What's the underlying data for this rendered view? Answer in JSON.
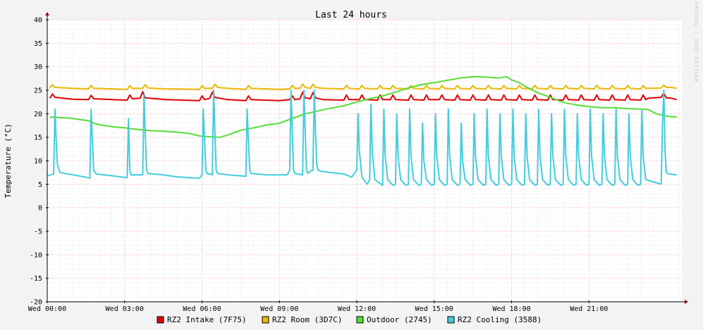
{
  "chart_data": {
    "type": "line",
    "title": "Last 24 hours",
    "ylabel": "Temperature (°C)",
    "xlabel": "",
    "watermark": "RRDTOOL / TOBI OETIKER",
    "ylim": [
      -20,
      40
    ],
    "yticks": [
      40,
      35,
      30,
      25,
      20,
      15,
      10,
      5,
      0,
      -5,
      -10,
      -15,
      -20
    ],
    "xlim_hours": [
      0,
      24.6
    ],
    "xticks": [
      {
        "hour": 0,
        "label": "Wed 00:00"
      },
      {
        "hour": 3,
        "label": "Wed 03:00"
      },
      {
        "hour": 6,
        "label": "Wed 06:00"
      },
      {
        "hour": 9,
        "label": "Wed 09:00"
      },
      {
        "hour": 12,
        "label": "Wed 12:00"
      },
      {
        "hour": 15,
        "label": "Wed 15:00"
      },
      {
        "hour": 18,
        "label": "Wed 18:00"
      },
      {
        "hour": 21,
        "label": "Wed 21:00"
      }
    ],
    "grid": true,
    "legend_position": "bottom",
    "series": [
      {
        "name": "RZ2 Intake (7F75)",
        "color": "#e00000",
        "x": [
          0.1,
          0.2,
          0.3,
          1.0,
          1.6,
          1.7,
          1.8,
          2.5,
          3.1,
          3.2,
          3.3,
          3.6,
          3.7,
          3.8,
          4.6,
          5.9,
          6.0,
          6.1,
          6.3,
          6.4,
          6.5,
          7.0,
          7.7,
          7.8,
          7.9,
          9.0,
          9.4,
          9.5,
          9.6,
          9.8,
          9.9,
          10.0,
          10.2,
          10.3,
          10.4,
          10.7,
          11.5,
          11.6,
          11.7,
          12.1,
          12.2,
          12.3,
          12.8,
          12.9,
          13.0,
          13.3,
          13.4,
          13.5,
          14.0,
          14.1,
          14.2,
          14.6,
          14.7,
          14.8,
          15.2,
          15.3,
          15.4,
          15.8,
          15.9,
          16.0,
          16.4,
          16.5,
          16.6,
          17.0,
          17.1,
          17.2,
          17.6,
          17.7,
          17.8,
          18.2,
          18.3,
          18.4,
          18.8,
          18.9,
          19.0,
          19.4,
          19.5,
          19.6,
          20.0,
          20.1,
          20.2,
          20.6,
          20.7,
          20.8,
          21.2,
          21.3,
          21.4,
          21.8,
          21.9,
          22.0,
          22.4,
          22.5,
          22.6,
          23.0,
          23.1,
          23.2,
          23.3,
          23.8,
          23.9,
          24.0,
          24.2,
          24.4
        ],
        "values": [
          23.3,
          24.2,
          23.5,
          23.1,
          23.0,
          23.9,
          23.2,
          23.0,
          22.9,
          24.0,
          23.2,
          23.3,
          24.7,
          23.4,
          23.0,
          22.8,
          23.8,
          23.0,
          23.3,
          24.6,
          23.5,
          23.0,
          22.8,
          23.8,
          23.0,
          22.8,
          23.0,
          23.8,
          23.0,
          23.2,
          24.6,
          23.4,
          23.2,
          24.5,
          23.4,
          23.0,
          22.9,
          24.0,
          23.0,
          23.0,
          24.0,
          23.0,
          22.9,
          24.0,
          23.0,
          23.0,
          24.0,
          23.0,
          22.9,
          24.0,
          23.0,
          22.9,
          24.0,
          23.0,
          23.0,
          24.0,
          23.0,
          22.9,
          24.0,
          23.0,
          22.9,
          24.0,
          23.0,
          22.9,
          24.0,
          23.0,
          22.9,
          24.0,
          23.0,
          22.9,
          24.0,
          23.0,
          22.9,
          24.0,
          23.0,
          22.9,
          24.0,
          23.0,
          22.9,
          24.0,
          23.0,
          22.9,
          24.0,
          23.0,
          22.9,
          24.0,
          23.0,
          22.9,
          24.0,
          23.0,
          22.9,
          24.0,
          23.0,
          22.9,
          24.0,
          23.0,
          23.3,
          23.5,
          24.4,
          23.4,
          23.3,
          23.0
        ]
      },
      {
        "name": "RZ2 Room (3D7C)",
        "color": "#e8b800",
        "x": [
          0.1,
          0.2,
          0.3,
          1.0,
          1.6,
          1.7,
          1.8,
          2.5,
          3.1,
          3.2,
          3.3,
          3.7,
          3.8,
          3.9,
          4.6,
          5.9,
          6.0,
          6.1,
          6.4,
          6.5,
          6.6,
          7.0,
          7.7,
          7.8,
          7.9,
          9.0,
          9.4,
          9.5,
          9.6,
          9.8,
          9.9,
          10.0,
          10.2,
          10.3,
          10.4,
          10.7,
          11.5,
          11.6,
          11.7,
          12.1,
          12.2,
          12.3,
          12.8,
          12.9,
          13.0,
          13.3,
          13.4,
          13.5,
          14.0,
          14.1,
          14.2,
          14.6,
          14.7,
          14.8,
          15.2,
          15.3,
          15.4,
          15.8,
          15.9,
          16.0,
          16.4,
          16.5,
          16.6,
          17.0,
          17.1,
          17.2,
          17.6,
          17.7,
          17.8,
          18.2,
          18.3,
          18.4,
          18.8,
          18.9,
          19.0,
          19.4,
          19.5,
          19.6,
          20.0,
          20.1,
          20.2,
          20.6,
          20.7,
          20.8,
          21.2,
          21.3,
          21.4,
          21.8,
          21.9,
          22.0,
          22.4,
          22.5,
          22.6,
          23.0,
          23.1,
          23.2,
          23.3,
          23.8,
          23.9,
          24.0,
          24.2,
          24.4
        ],
        "values": [
          25.5,
          26.2,
          25.6,
          25.4,
          25.3,
          26.0,
          25.4,
          25.3,
          25.2,
          26.0,
          25.4,
          25.4,
          26.2,
          25.5,
          25.3,
          25.2,
          26.0,
          25.4,
          25.4,
          26.3,
          25.6,
          25.4,
          25.2,
          26.0,
          25.4,
          25.2,
          25.3,
          26.0,
          25.4,
          25.4,
          26.3,
          25.6,
          25.4,
          26.3,
          25.6,
          25.4,
          25.3,
          26.0,
          25.4,
          25.3,
          26.0,
          25.4,
          25.3,
          26.0,
          25.4,
          25.3,
          26.0,
          25.4,
          25.3,
          26.0,
          25.4,
          25.3,
          26.0,
          25.4,
          25.3,
          26.0,
          25.4,
          25.3,
          26.0,
          25.4,
          25.3,
          26.0,
          25.4,
          25.3,
          26.0,
          25.4,
          25.3,
          26.0,
          25.4,
          25.3,
          26.0,
          25.4,
          25.3,
          26.0,
          25.4,
          25.3,
          26.0,
          25.4,
          25.3,
          26.0,
          25.4,
          25.3,
          26.0,
          25.4,
          25.3,
          26.0,
          25.4,
          25.3,
          26.0,
          25.4,
          25.3,
          26.0,
          25.4,
          25.3,
          26.0,
          25.4,
          25.4,
          25.5,
          26.1,
          25.6,
          25.6,
          25.4
        ]
      },
      {
        "name": "Outdoor (2745)",
        "color": "#55dd33",
        "x": [
          0.1,
          0.5,
          1.0,
          1.2,
          1.6,
          1.9,
          2.2,
          2.6,
          3.0,
          3.3,
          3.6,
          4.0,
          4.5,
          5.0,
          5.5,
          5.9,
          6.3,
          6.7,
          7.0,
          7.5,
          8.0,
          8.5,
          9.0,
          9.5,
          10.0,
          10.5,
          11.0,
          11.5,
          12.0,
          12.5,
          13.0,
          13.5,
          14.0,
          14.5,
          15.0,
          15.5,
          16.0,
          16.5,
          17.0,
          17.5,
          17.8,
          18.0,
          18.3,
          18.6,
          19.0,
          19.5,
          20.0,
          20.5,
          21.0,
          21.5,
          22.0,
          22.5,
          23.0,
          23.3,
          23.6,
          24.0,
          24.4
        ],
        "values": [
          19.3,
          19.2,
          19.0,
          18.8,
          18.5,
          17.8,
          17.5,
          17.2,
          17.0,
          16.8,
          16.6,
          16.4,
          16.3,
          16.1,
          15.8,
          15.3,
          15.1,
          15.0,
          15.5,
          16.5,
          17.0,
          17.6,
          18.0,
          19.0,
          20.0,
          20.6,
          21.2,
          21.7,
          22.5,
          23.2,
          23.8,
          24.6,
          25.5,
          26.2,
          26.6,
          27.1,
          27.6,
          27.9,
          27.8,
          27.6,
          27.9,
          27.2,
          26.6,
          25.6,
          24.5,
          23.5,
          22.4,
          21.9,
          21.5,
          21.3,
          21.3,
          21.1,
          21.0,
          20.9,
          20.0,
          19.5,
          19.3
        ]
      },
      {
        "name": "RZ2 Cooling (3588)",
        "color": "#44ccdd",
        "x": [
          0.0,
          0.25,
          0.3,
          0.35,
          0.4,
          0.5,
          1.0,
          1.5,
          1.65,
          1.7,
          1.75,
          1.8,
          1.9,
          2.5,
          3.1,
          3.15,
          3.2,
          3.25,
          3.3,
          3.7,
          3.75,
          3.8,
          3.85,
          3.9,
          4.5,
          5.0,
          5.9,
          6.0,
          6.05,
          6.1,
          6.15,
          6.2,
          6.4,
          6.45,
          6.5,
          6.55,
          6.6,
          7.0,
          7.7,
          7.75,
          7.8,
          7.85,
          7.9,
          8.5,
          9.0,
          9.3,
          9.4,
          9.45,
          9.5,
          9.55,
          9.6,
          9.9,
          9.95,
          10.0,
          10.05,
          10.1,
          10.2,
          10.3,
          10.35,
          10.4,
          10.45,
          10.5,
          10.6,
          11.0,
          11.5,
          11.8,
          12.0,
          12.05,
          12.1,
          12.2,
          12.4,
          12.5,
          12.55,
          12.6,
          12.7,
          13.0,
          13.05,
          13.1,
          13.2,
          13.4,
          13.5,
          13.55,
          13.6,
          13.7,
          13.9,
          14.0,
          14.05,
          14.1,
          14.2,
          14.4,
          14.5,
          14.55,
          14.6,
          14.7,
          14.9,
          15.0,
          15.05,
          15.1,
          15.2,
          15.4,
          15.5,
          15.55,
          15.6,
          15.7,
          15.9,
          16.0,
          16.05,
          16.1,
          16.2,
          16.4,
          16.5,
          16.55,
          16.6,
          16.7,
          16.9,
          17.0,
          17.05,
          17.1,
          17.2,
          17.4,
          17.5,
          17.55,
          17.6,
          17.7,
          17.9,
          18.0,
          18.05,
          18.1,
          18.2,
          18.4,
          18.5,
          18.55,
          18.6,
          18.7,
          18.9,
          19.0,
          19.05,
          19.1,
          19.2,
          19.4,
          19.5,
          19.55,
          19.6,
          19.7,
          19.9,
          20.0,
          20.05,
          20.1,
          20.2,
          20.4,
          20.5,
          20.55,
          20.6,
          20.7,
          20.9,
          21.0,
          21.05,
          21.1,
          21.2,
          21.4,
          21.5,
          21.55,
          21.6,
          21.7,
          21.9,
          22.0,
          22.05,
          22.1,
          22.2,
          22.4,
          22.5,
          22.55,
          22.6,
          22.7,
          22.9,
          23.0,
          23.05,
          23.1,
          23.2,
          23.5,
          23.8,
          23.85,
          23.9,
          23.95,
          24.0,
          24.1,
          24.4
        ],
        "values": [
          6.8,
          7.2,
          21.0,
          14.0,
          9.0,
          7.5,
          7.0,
          6.5,
          6.3,
          21.0,
          14.0,
          8.0,
          7.2,
          6.8,
          6.4,
          19.0,
          8.0,
          7.0,
          7.0,
          7.0,
          24.0,
          16.0,
          8.0,
          7.3,
          7.0,
          6.6,
          6.3,
          7.0,
          21.0,
          14.0,
          8.0,
          7.3,
          7.0,
          25.0,
          16.0,
          8.0,
          7.3,
          7.0,
          6.7,
          21.0,
          14.0,
          8.0,
          7.3,
          7.0,
          7.0,
          7.0,
          8.0,
          25.0,
          16.0,
          8.0,
          7.3,
          7.0,
          25.0,
          16.0,
          8.0,
          7.3,
          7.8,
          8.0,
          25.0,
          16.0,
          9.0,
          8.0,
          7.8,
          7.5,
          7.2,
          6.5,
          8.0,
          20.0,
          12.0,
          6.5,
          5.0,
          6.0,
          22.0,
          12.0,
          6.0,
          4.8,
          21.0,
          11.0,
          6.0,
          4.8,
          5.0,
          20.0,
          11.0,
          6.0,
          4.8,
          5.0,
          21.0,
          11.0,
          6.0,
          4.8,
          5.0,
          18.0,
          10.0,
          6.0,
          4.8,
          5.0,
          20.0,
          11.0,
          6.0,
          4.8,
          5.0,
          21.0,
          11.0,
          6.0,
          4.8,
          5.0,
          18.0,
          10.0,
          6.0,
          4.8,
          5.0,
          20.0,
          11.0,
          6.0,
          4.8,
          5.0,
          21.0,
          11.0,
          6.0,
          4.8,
          5.0,
          20.0,
          11.0,
          6.0,
          4.8,
          5.0,
          21.0,
          11.0,
          6.0,
          4.8,
          5.0,
          20.0,
          11.0,
          6.0,
          4.8,
          5.0,
          21.0,
          11.0,
          6.0,
          4.8,
          5.0,
          20.0,
          11.0,
          6.0,
          4.8,
          5.0,
          21.0,
          11.0,
          6.0,
          4.8,
          5.0,
          20.0,
          11.0,
          6.0,
          4.8,
          5.0,
          21.0,
          11.0,
          6.0,
          4.8,
          5.0,
          20.0,
          11.0,
          6.0,
          4.8,
          5.0,
          21.0,
          11.0,
          6.0,
          4.8,
          5.0,
          20.0,
          11.0,
          6.0,
          4.8,
          5.0,
          21.0,
          11.0,
          6.0,
          5.5,
          5.0,
          18.0,
          25.0,
          12.0,
          7.5,
          7.2,
          7.0
        ]
      }
    ]
  }
}
